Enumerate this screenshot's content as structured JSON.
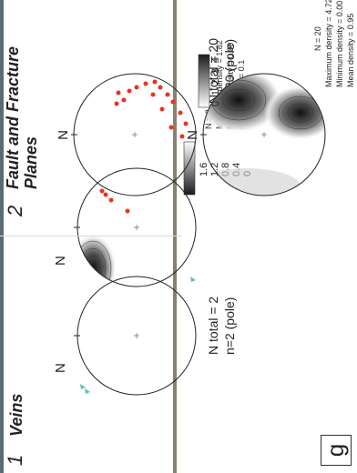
{
  "panels": [
    {
      "number": "1",
      "title_line1": "Veins",
      "title_line2": "",
      "north_label": "N",
      "n_total": "N total = 2",
      "n_pole": "n=2 (pole)",
      "legend_ticks": [
        "1.6",
        "1.2",
        "0.8",
        "0.4",
        "0"
      ],
      "stats": [
        "N = 2",
        "Maximum density = 1.82",
        "Minimum density = 0.00",
        "Mean density = 0.1"
      ],
      "pole_color": "#5fbfb8"
    },
    {
      "number": "2",
      "title_line1": "Fault and Fracture",
      "title_line2": "Planes",
      "north_label": "N",
      "n_total": "N total = 20",
      "n_pole": "n=20 (pole)",
      "legend_ticks": [
        "4",
        "3",
        "2",
        "1",
        "0"
      ],
      "stats": [
        "N = 20",
        "Maximum density = 4.72",
        "Minimum density = 0.00",
        "Mean density = 0.95"
      ],
      "pole_color": "#e8331f"
    }
  ],
  "figure_label": "g"
}
